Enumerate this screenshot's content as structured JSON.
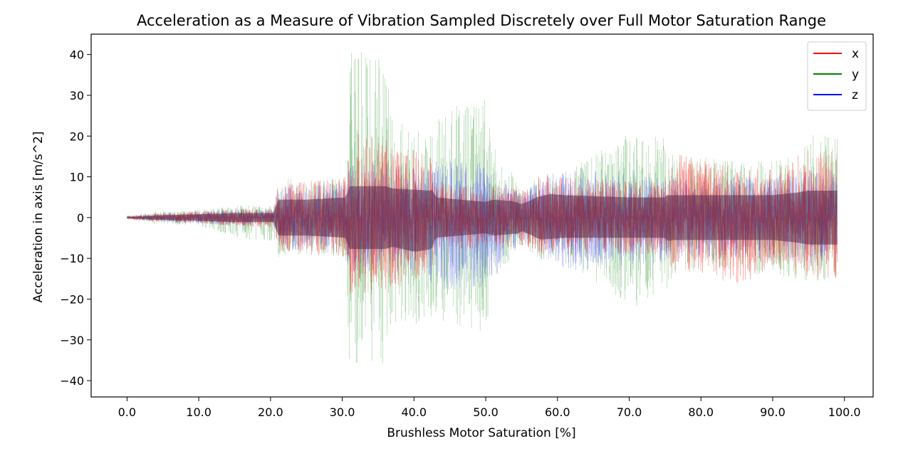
{
  "chart_data": {
    "type": "line",
    "title": "Acceleration as a Measure of Vibration Sampled Discretely over Full Motor Saturation Range",
    "xlabel": "Brushless Motor Saturation [%]",
    "ylabel": "Acceleration in axis [m/s^2]",
    "xlim": [
      -5,
      104
    ],
    "ylim": [
      -44,
      45
    ],
    "x_ticks": [
      0,
      10,
      20,
      30,
      40,
      50,
      60,
      70,
      80,
      90,
      100
    ],
    "x_tick_labels": [
      "0.0",
      "10.0",
      "20.0",
      "30.0",
      "40.0",
      "50.0",
      "60.0",
      "70.0",
      "80.0",
      "90.0",
      "100.0"
    ],
    "y_ticks": [
      40,
      30,
      20,
      10,
      0,
      -10,
      -20,
      -30,
      -40
    ],
    "y_tick_labels": [
      "40",
      "30",
      "20",
      "10",
      "0",
      "−10",
      "−20",
      "−30",
      "−40"
    ],
    "grid": false,
    "legend_position": "top-right",
    "series": [
      {
        "name": "x",
        "color": "#ff0000",
        "envelope": {
          "x": [
            0,
            4,
            10,
            15,
            20.5,
            21,
            25,
            30.5,
            31,
            36,
            37,
            42.5,
            43,
            50,
            51,
            55,
            56.5,
            57,
            61,
            70,
            75,
            76,
            85,
            90,
            93,
            95,
            99
          ],
          "max": [
            0.4,
            1,
            1.5,
            2,
            2.5,
            8,
            9,
            10,
            22,
            20,
            18,
            15,
            9,
            7,
            8,
            7,
            8,
            11,
            10,
            9,
            9,
            16,
            12,
            12,
            15,
            17,
            17
          ],
          "min": [
            -0.4,
            -1,
            -1.5,
            -2,
            -2.5,
            -8,
            -9,
            -10,
            -19,
            -18,
            -17,
            -14,
            -9,
            -7,
            -8,
            -7,
            -8,
            -10,
            -9,
            -9,
            -9,
            -13,
            -17,
            -12,
            -14,
            -15,
            -15
          ]
        }
      },
      {
        "name": "y",
        "color": "#008000",
        "envelope": {
          "x": [
            0,
            4,
            10,
            15,
            20.5,
            21,
            25,
            30.5,
            31,
            36,
            37,
            42.5,
            43,
            50,
            51,
            55,
            56.5,
            57,
            61,
            70,
            75,
            76,
            85,
            90,
            93,
            95,
            99
          ],
          "max": [
            0.5,
            1.5,
            2,
            3,
            3,
            10,
            9,
            10,
            41,
            40,
            24,
            20,
            26,
            30,
            19,
            7,
            9,
            10,
            11,
            21,
            20,
            16,
            14,
            14,
            16,
            21,
            20
          ],
          "min": [
            -0.5,
            -1.5,
            -2,
            -5,
            -6,
            -10,
            -9,
            -10,
            -38,
            -39,
            -28,
            -25,
            -26,
            -28,
            -16,
            -7,
            -9,
            -11,
            -11,
            -22,
            -22,
            -14,
            -14,
            -14,
            -15,
            -16,
            -15
          ]
        }
      },
      {
        "name": "z",
        "color": "#0000ff",
        "envelope": {
          "x": [
            0,
            4,
            10,
            15,
            20.5,
            21,
            25,
            30.5,
            31,
            36,
            37,
            42.5,
            43,
            50,
            51,
            55,
            56.5,
            57,
            61,
            70,
            75,
            76,
            85,
            90,
            93,
            95,
            99
          ],
          "max": [
            0.3,
            1,
            1.5,
            2,
            2,
            8,
            8,
            9,
            14,
            14,
            13,
            12,
            14,
            14,
            10,
            6,
            8,
            9,
            12,
            11,
            10,
            10,
            10,
            10,
            11,
            12,
            12
          ],
          "min": [
            -0.3,
            -1,
            -1.5,
            -2,
            -2,
            -8,
            -8,
            -9,
            -14,
            -14,
            -13,
            -17,
            -18,
            -17,
            -15,
            -6,
            -8,
            -9,
            -13,
            -12,
            -11,
            -10,
            -10,
            -10,
            -11,
            -12,
            -12
          ]
        }
      }
    ]
  }
}
